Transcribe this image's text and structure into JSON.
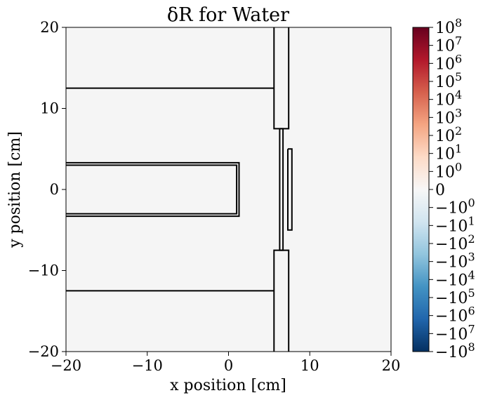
{
  "chart_data": {
    "type": "heatmap",
    "title": "δR for Water",
    "xlabel": "x position [cm]",
    "ylabel": "y position [cm]",
    "xlim": [
      -20,
      20
    ],
    "ylim": [
      -20,
      20
    ],
    "x_ticks": [
      -20,
      -10,
      0,
      10,
      20
    ],
    "x_tick_labels": [
      "−20",
      "−10",
      "0",
      "10",
      "20"
    ],
    "y_ticks": [
      -20,
      -10,
      0,
      10,
      20
    ],
    "y_tick_labels": [
      "−20",
      "−10",
      "0",
      "10",
      "20"
    ],
    "field_value": 0,
    "field_color": "#f5f5f5",
    "geometry_outline_color": "#000000",
    "geometry_outlines": [
      {
        "name": "upper-wall",
        "points": [
          [
            -20,
            12.5
          ],
          [
            5.6,
            12.5
          ]
        ]
      },
      {
        "name": "lower-wall",
        "points": [
          [
            -20,
            -12.5
          ],
          [
            5.6,
            -12.5
          ]
        ]
      },
      {
        "name": "upper-collimator",
        "points": [
          [
            5.6,
            20
          ],
          [
            5.6,
            7.5
          ],
          [
            7.4,
            7.5
          ],
          [
            7.4,
            20
          ]
        ]
      },
      {
        "name": "lower-collimator",
        "points": [
          [
            5.6,
            -20
          ],
          [
            5.6,
            -7.5
          ],
          [
            7.4,
            -7.5
          ],
          [
            7.4,
            -20
          ]
        ]
      },
      {
        "name": "slit-plate",
        "points": [
          [
            6.3,
            7.5
          ],
          [
            6.3,
            -7.5
          ],
          [
            6.7,
            -7.5
          ],
          [
            6.7,
            7.5
          ],
          [
            6.3,
            7.5
          ]
        ]
      },
      {
        "name": "detector",
        "points": [
          [
            7.3,
            5
          ],
          [
            7.8,
            5
          ],
          [
            7.8,
            -5
          ],
          [
            7.3,
            -5
          ],
          [
            7.3,
            5
          ]
        ]
      },
      {
        "name": "beam-pipe-outer",
        "points": [
          [
            -20,
            3.3
          ],
          [
            1.3,
            3.3
          ],
          [
            1.3,
            -3.3
          ],
          [
            -20,
            -3.3
          ]
        ]
      },
      {
        "name": "beam-pipe-inner",
        "points": [
          [
            -20,
            3.0
          ],
          [
            1.0,
            3.0
          ],
          [
            1.0,
            -3.0
          ],
          [
            -20,
            -3.0
          ]
        ]
      }
    ],
    "colorbar": {
      "colormap": "RdBu_r",
      "scale": "symlog",
      "range": [
        -100000000,
        100000000
      ],
      "ticks": [
        {
          "base": "10",
          "exp": "8"
        },
        {
          "base": "10",
          "exp": "7"
        },
        {
          "base": "10",
          "exp": "6"
        },
        {
          "base": "10",
          "exp": "5"
        },
        {
          "base": "10",
          "exp": "4"
        },
        {
          "base": "10",
          "exp": "3"
        },
        {
          "base": "10",
          "exp": "2"
        },
        {
          "base": "10",
          "exp": "1"
        },
        {
          "base": "10",
          "exp": "0"
        },
        {
          "base": "0",
          "exp": ""
        },
        {
          "base": "−10",
          "exp": "0"
        },
        {
          "base": "−10",
          "exp": "1"
        },
        {
          "base": "−10",
          "exp": "2"
        },
        {
          "base": "−10",
          "exp": "3"
        },
        {
          "base": "−10",
          "exp": "4"
        },
        {
          "base": "−10",
          "exp": "5"
        },
        {
          "base": "−10",
          "exp": "6"
        },
        {
          "base": "−10",
          "exp": "7"
        },
        {
          "base": "−10",
          "exp": "8"
        }
      ],
      "color_stops": [
        "#67001f",
        "#b2182b",
        "#d6604d",
        "#f4a582",
        "#fddbc7",
        "#f7f7f7",
        "#d1e5f0",
        "#92c5de",
        "#4393c3",
        "#2166ac",
        "#053061"
      ]
    }
  }
}
